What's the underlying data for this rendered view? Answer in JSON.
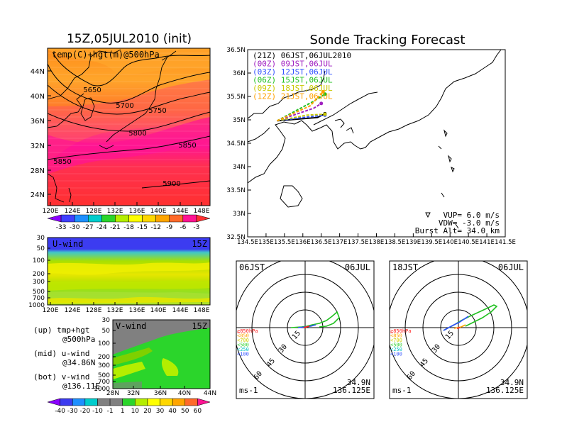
{
  "left_title": "15Z,05JUL2010 (init)",
  "right_title": "Sonde Tracking Forecast",
  "map500": {
    "label": "temp(C)+hgt(m)@500hPa",
    "x_ticks": [
      "120E",
      "124E",
      "128E",
      "132E",
      "136E",
      "140E",
      "144E",
      "148E"
    ],
    "y_ticks": [
      "24N",
      "28N",
      "32N",
      "36N",
      "40N",
      "44N"
    ],
    "contours": [
      "5650",
      "5700",
      "5750",
      "5800",
      "5850",
      "5850",
      "5900"
    ],
    "colorbar": [
      "-33",
      "-30",
      "-27",
      "-24",
      "-21",
      "-18",
      "-15",
      "-12",
      "-9",
      "-6",
      "-3"
    ],
    "colors": [
      "#8b00ff",
      "#4040ff",
      "#1e90ff",
      "#00cdcd",
      "#2bd52b",
      "#b4ee00",
      "#ffff00",
      "#ffd700",
      "#ffa500",
      "#ff6a2a",
      "#ff1493",
      "#ff3030"
    ]
  },
  "uwind": {
    "label": "U-wind",
    "time": "15Z",
    "x_ticks": [
      "120E",
      "124E",
      "128E",
      "132E",
      "136E",
      "140E",
      "144E",
      "148E"
    ],
    "y_ticks": [
      "30",
      "50",
      "100",
      "200",
      "300",
      "500",
      "700",
      "1000"
    ]
  },
  "vwind": {
    "label": "V-wind",
    "time": "15Z",
    "x_ticks": [
      "28N",
      "32N",
      "36N",
      "40N",
      "44N"
    ],
    "y_ticks": [
      "30",
      "50",
      "100",
      "200",
      "300",
      "500",
      "700",
      "1000"
    ],
    "colorbar": [
      "-40",
      "-30",
      "-20",
      "-10",
      "-1",
      "1",
      "10",
      "20",
      "30",
      "40",
      "50",
      "60"
    ]
  },
  "notes": {
    "up": "(up) tmp+hgt",
    "up2": "@500hPa",
    "mid": "(mid) u-wind",
    "mid2": "@34.86N",
    "bot": "(bot) v-wind",
    "bot2": "@136.11E"
  },
  "track": {
    "legend": [
      {
        "text": "(21Z) 06JST,06JUL2010",
        "color": "#000000"
      },
      {
        "text": "(00Z) 09JST,06JUL",
        "color": "#a020c0"
      },
      {
        "text": "(03Z) 12JST,06JUL",
        "color": "#3050ff"
      },
      {
        "text": "(06Z) 15JST,06JUL",
        "color": "#20c020"
      },
      {
        "text": "(09Z) 18JST,06JUL",
        "color": "#c8c800"
      },
      {
        "text": "(12Z) 21JST,06JUL",
        "color": "#ffa000"
      }
    ],
    "x_ticks": [
      "134.5E",
      "135E",
      "135.5E",
      "136E",
      "136.5E",
      "137E",
      "137.5E",
      "138E",
      "138.5E",
      "139E",
      "139.5E",
      "140E",
      "140.5E",
      "141E",
      "141.5E"
    ],
    "y_ticks": [
      "32.5N",
      "33N",
      "33.5N",
      "34N",
      "34.5N",
      "35N",
      "35.5N",
      "36N",
      "36.5N"
    ],
    "vup": "VUP= 6.0 m/s",
    "vdw": "VDW= -3.0 m/s",
    "burst": "Burst Alt= 34.0 km"
  },
  "chart_data": [
    {
      "type": "heatmap",
      "title": "temp(C)+hgt(m)@500hPa",
      "x_range": [
        "120E",
        "150E"
      ],
      "y_range": [
        "22N",
        "48N"
      ],
      "contour_values": [
        5650,
        5700,
        5750,
        5800,
        5850,
        5900
      ],
      "colorbar": [
        -33,
        -30,
        -27,
        -24,
        -21,
        -18,
        -15,
        -12,
        -9,
        -6,
        -3
      ]
    },
    {
      "type": "heatmap",
      "title": "U-wind",
      "x_range": [
        "120E",
        "150E"
      ],
      "y_levels_hPa": [
        30,
        50,
        100,
        200,
        300,
        500,
        700,
        1000
      ]
    },
    {
      "type": "heatmap",
      "title": "V-wind",
      "x_range": [
        "26N",
        "44N"
      ],
      "y_levels_hPa": [
        30,
        50,
        100,
        200,
        300,
        500,
        700,
        1000
      ],
      "colorbar": [
        -40,
        -30,
        -20,
        -10,
        -1,
        1,
        10,
        20,
        30,
        40,
        50,
        60
      ]
    },
    {
      "type": "line",
      "title": "Sonde Tracking Forecast",
      "xlim": [
        134.5,
        141.5
      ],
      "ylim": [
        32.5,
        36.5
      ],
      "series": [
        {
          "name": "(21Z) 06JST,06JUL2010",
          "x": [
            135.3,
            136.4,
            136.6
          ],
          "y": [
            34.98,
            35.05,
            35.13
          ]
        },
        {
          "name": "(00Z) 09JST,06JUL",
          "x": [
            135.3,
            136.3,
            136.5
          ],
          "y": [
            34.98,
            35.25,
            35.35
          ]
        },
        {
          "name": "(03Z) 12JST,06JUL",
          "x": [
            135.3,
            136.0,
            136.6
          ],
          "y": [
            34.98,
            35.05,
            35.1
          ]
        },
        {
          "name": "(06Z) 15JST,06JUL",
          "x": [
            135.3,
            136.3,
            136.6
          ],
          "y": [
            34.98,
            35.4,
            35.55
          ]
        },
        {
          "name": "(09Z) 18JST,06JUL",
          "x": [
            135.3,
            136.1,
            136.6
          ],
          "y": [
            34.98,
            35.1,
            35.12
          ]
        },
        {
          "name": "(12Z) 21JST,06JUL",
          "x": [
            135.3,
            136.2,
            136.55
          ],
          "y": [
            34.98,
            35.3,
            35.6
          ]
        }
      ]
    }
  ],
  "hodo1": {
    "time": "06JST",
    "date": "06JUL",
    "lat": "34.9N",
    "lon": "136.125E",
    "unit": "ms-1",
    "rings": [
      "15",
      "30",
      "45",
      "60"
    ],
    "levels": [
      {
        "t": "≧850hPa",
        "c": "#ff2020"
      },
      {
        "t": "<850",
        "c": "#ffa000"
      },
      {
        "t": "<700",
        "c": "#d0d000"
      },
      {
        "t": "<500",
        "c": "#30d030"
      },
      {
        "t": "<250",
        "c": "#00c0c0"
      },
      {
        "t": "<100",
        "c": "#3050ff"
      }
    ]
  },
  "hodo2": {
    "time": "18JST",
    "date": "06JUL",
    "lat": "34.9N",
    "lon": "136.125E",
    "unit": "ms-1",
    "rings": [
      "15",
      "30",
      "45",
      "60"
    ],
    "levels": [
      {
        "t": "≧850hPa",
        "c": "#ff2020"
      },
      {
        "t": "<850",
        "c": "#ffa000"
      },
      {
        "t": "<700",
        "c": "#d0d000"
      },
      {
        "t": "<500",
        "c": "#30d030"
      },
      {
        "t": "<250",
        "c": "#00c0c0"
      },
      {
        "t": "<100",
        "c": "#3050ff"
      }
    ]
  }
}
